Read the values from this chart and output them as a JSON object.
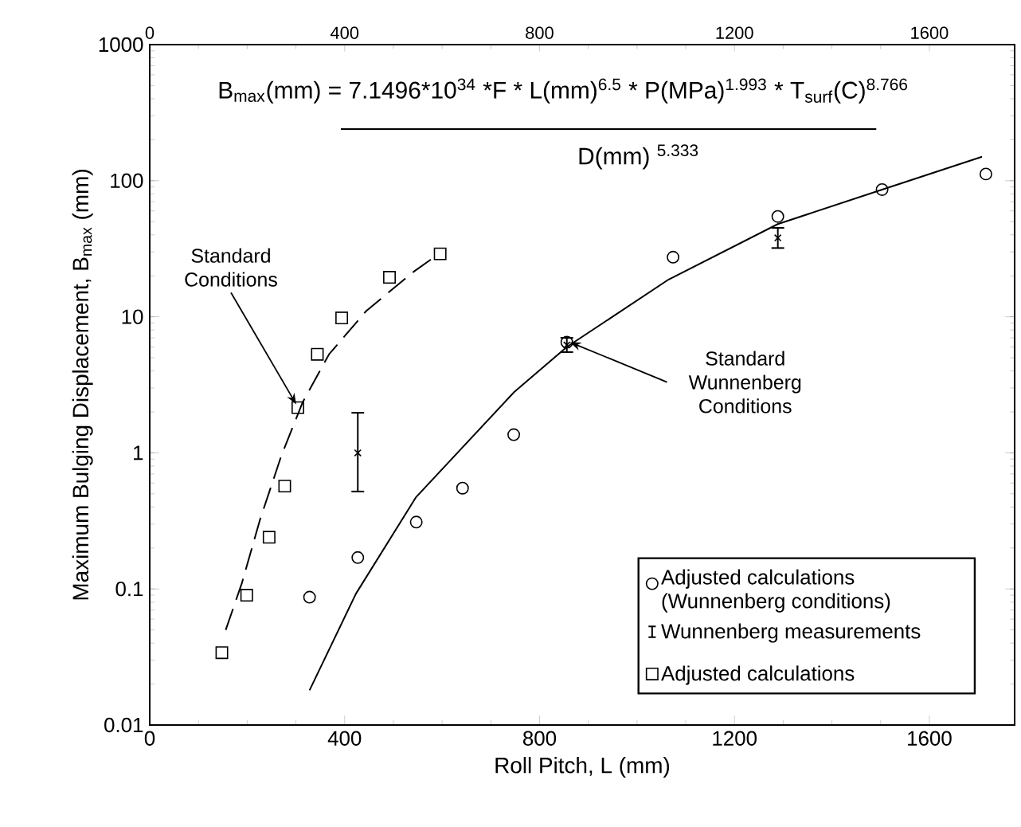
{
  "chart_data": {
    "type": "scatter",
    "xlabel": "Roll Pitch, L (mm)",
    "ylabel": "Maximum Bulging Displacement, B$_{max}$ (mm)",
    "xlim": [
      0,
      1775
    ],
    "xticks": [
      0,
      400,
      800,
      1200,
      1600
    ],
    "x2lim": [
      0,
      1775
    ],
    "x2ticks": [
      0,
      400,
      800,
      1200,
      1600
    ],
    "ylim": [
      0.01,
      1000
    ],
    "yticks": [
      0.01,
      0.1,
      1,
      10,
      100,
      1000
    ],
    "log": "y",
    "legend": "bottom right",
    "annotations": [
      "B$_{max}$(mm) = 7.1496*10$^{34}$ *F * L(mm)$^{6.5}$ * P(MPa)$^{1.993}$ * T$_{surf}$(C)$^{8.766}$",
      "D(mm) $^{5.333}$",
      {
        "text": "Standard Conditions",
        "x": 304,
        "y": 2.15
      },
      {
        "text": "Standard Wunnenberg Conditions",
        "x": 856,
        "y": 6.5
      }
    ],
    "series": [
      {
        "name": "Adjusted calculations (Wunnenberg conditions)",
        "marker": "circle",
        "color": "#000000",
        "x": [
          328,
          427,
          547,
          642,
          747,
          856,
          1074,
          1289,
          1503,
          1716
        ],
        "values": [
          0.087,
          0.17,
          0.31,
          0.55,
          1.36,
          6.5,
          27.4,
          54.6,
          86,
          112
        ]
      },
      {
        "name": "Wunnenberg measurements",
        "marker": "cross",
        "color": "#000000",
        "x": [
          427,
          856,
          1289
        ],
        "values": [
          1.0,
          6.2,
          38
        ],
        "errors": [
          [
            0.52,
            1.97
          ],
          [
            5.5,
            7.0
          ],
          [
            32,
            45
          ]
        ]
      },
      {
        "name": "Adjusted calculations",
        "marker": "square",
        "color": "#000000",
        "x": [
          148,
          199,
          245,
          277,
          304,
          344,
          394,
          492,
          596
        ],
        "values": [
          0.034,
          0.09,
          0.24,
          0.57,
          2.15,
          5.3,
          9.8,
          19.5,
          29
        ]
      },
      {
        "type": "line",
        "line_style": "solid",
        "color": "#000000",
        "x": [
          328,
          423,
          546,
          748,
          856,
          1065,
          1289,
          1503,
          1708
        ],
        "values": [
          0.018,
          0.092,
          0.47,
          2.8,
          6.0,
          18.8,
          48,
          86,
          150
        ]
      },
      {
        "type": "line",
        "line_style": "dashed",
        "color": "#000000",
        "x": [
          156,
          189,
          226,
          270,
          314,
          368,
          444,
          542,
          581
        ],
        "values": [
          0.05,
          0.11,
          0.32,
          0.95,
          2.36,
          5.3,
          11,
          21.5,
          27
        ]
      }
    ]
  }
}
